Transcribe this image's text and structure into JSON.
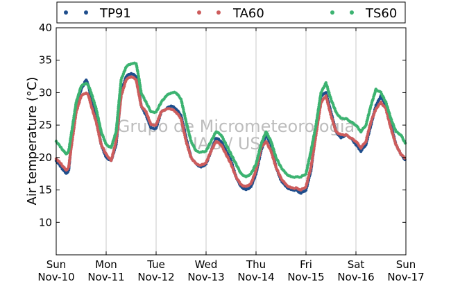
{
  "chart_data": {
    "type": "scatter",
    "title": "",
    "xlabel": "",
    "ylabel": "Air temperature (°C)",
    "ylim": [
      5,
      40
    ],
    "yticks": [
      10,
      15,
      20,
      25,
      30,
      35,
      40
    ],
    "xlim_days": [
      "Nov-10",
      "Nov-17"
    ],
    "xticks": [
      {
        "day": "Sun",
        "date": "Nov-10"
      },
      {
        "day": "Mon",
        "date": "Nov-11"
      },
      {
        "day": "Tue",
        "date": "Nov-12"
      },
      {
        "day": "Wed",
        "date": "Nov-13"
      },
      {
        "day": "Thu",
        "date": "Nov-14"
      },
      {
        "day": "Fri",
        "date": "Nov-15"
      },
      {
        "day": "Sat",
        "date": "Nov-16"
      },
      {
        "day": "Sun",
        "date": "Nov-17"
      }
    ],
    "grid": "vertical",
    "legend_position": "top",
    "watermark": [
      "Grupo de Micrometeorologia",
      "IAG / USP"
    ],
    "x_unit": "days since Nov-10 00:00",
    "series": [
      {
        "name": "TP91",
        "color": "#1f4e8c",
        "x": [
          0,
          0.1,
          0.2,
          0.25,
          0.3,
          0.4,
          0.5,
          0.6,
          0.65,
          0.7,
          0.8,
          0.9,
          1.0,
          1.1,
          1.2,
          1.3,
          1.4,
          1.5,
          1.6,
          1.65,
          1.7,
          1.8,
          1.9,
          2.0,
          2.1,
          2.2,
          2.3,
          2.4,
          2.5,
          2.6,
          2.7,
          2.8,
          2.9,
          3.0,
          3.1,
          3.2,
          3.3,
          3.4,
          3.5,
          3.6,
          3.7,
          3.8,
          3.9,
          4.0,
          4.1,
          4.2,
          4.3,
          4.4,
          4.5,
          4.6,
          4.7,
          4.8,
          4.9,
          5.0,
          5.1,
          5.2,
          5.3,
          5.4,
          5.5,
          5.6,
          5.7,
          5.8,
          5.9,
          6.0,
          6.1,
          6.2,
          6.3,
          6.4,
          6.5,
          6.6,
          6.7,
          6.8,
          6.9,
          7.0
        ],
        "y": [
          19.5,
          18.5,
          17.5,
          18,
          22,
          28,
          30.5,
          32,
          31,
          29,
          26,
          22,
          20,
          19.5,
          22,
          30,
          32.5,
          33,
          32.5,
          30.5,
          28,
          26.5,
          24.5,
          24.5,
          27,
          27.5,
          28,
          27.5,
          26.5,
          23,
          20,
          19,
          18.5,
          19,
          21,
          23,
          22.5,
          21,
          19.5,
          17,
          15.5,
          15,
          15.5,
          17.5,
          21,
          23.5,
          22,
          18.5,
          16.5,
          15.5,
          15,
          15,
          14.5,
          15,
          18,
          24,
          29.5,
          30,
          27,
          24,
          23,
          23.5,
          23,
          22,
          21,
          22,
          25,
          28,
          29.5,
          28,
          25,
          22,
          20.5,
          19.5
        ]
      },
      {
        "name": "TA60",
        "color": "#cd5c5c",
        "x": [
          0,
          0.1,
          0.2,
          0.25,
          0.3,
          0.4,
          0.5,
          0.6,
          0.65,
          0.7,
          0.8,
          0.9,
          1.0,
          1.1,
          1.2,
          1.3,
          1.4,
          1.5,
          1.6,
          1.65,
          1.7,
          1.8,
          1.9,
          2.0,
          2.1,
          2.2,
          2.3,
          2.4,
          2.5,
          2.6,
          2.7,
          2.8,
          2.9,
          3.0,
          3.1,
          3.2,
          3.3,
          3.4,
          3.5,
          3.6,
          3.7,
          3.8,
          3.9,
          4.0,
          4.1,
          4.2,
          4.3,
          4.4,
          4.5,
          4.6,
          4.7,
          4.8,
          4.9,
          5.0,
          5.1,
          5.2,
          5.3,
          5.4,
          5.5,
          5.6,
          5.7,
          5.8,
          5.9,
          6.0,
          6.1,
          6.2,
          6.3,
          6.4,
          6.5,
          6.6,
          6.7,
          6.8,
          6.9,
          7.0
        ],
        "y": [
          19.8,
          19,
          18,
          18.5,
          21.5,
          27,
          29.5,
          30,
          29.5,
          28,
          25.5,
          22,
          20.5,
          19.5,
          22.5,
          29.5,
          32,
          32.5,
          32,
          30,
          28,
          27,
          25,
          25,
          27,
          27.5,
          27.5,
          27,
          26,
          22.5,
          20,
          19,
          18.8,
          19.2,
          21,
          22.5,
          22,
          20.5,
          19,
          17,
          15.8,
          15.5,
          16,
          18,
          21.5,
          22.5,
          21,
          18.5,
          16.8,
          15.8,
          15.3,
          15.3,
          15,
          15.5,
          18.5,
          23.5,
          28.5,
          29.5,
          26.5,
          24,
          23.5,
          23.5,
          23,
          22.5,
          21.5,
          22.5,
          25.5,
          27.5,
          28.5,
          27.5,
          24.5,
          22,
          20.5,
          19.8
        ]
      },
      {
        "name": "TS60",
        "color": "#3cb371",
        "x": [
          0,
          0.1,
          0.2,
          0.25,
          0.3,
          0.4,
          0.5,
          0.6,
          0.65,
          0.7,
          0.8,
          0.9,
          1.0,
          1.1,
          1.2,
          1.3,
          1.4,
          1.5,
          1.6,
          1.65,
          1.7,
          1.8,
          1.9,
          2.0,
          2.1,
          2.2,
          2.3,
          2.4,
          2.5,
          2.6,
          2.7,
          2.8,
          2.9,
          3.0,
          3.1,
          3.2,
          3.3,
          3.4,
          3.5,
          3.6,
          3.7,
          3.8,
          3.9,
          4.0,
          4.1,
          4.2,
          4.3,
          4.4,
          4.5,
          4.6,
          4.7,
          4.8,
          4.9,
          5.0,
          5.1,
          5.2,
          5.3,
          5.4,
          5.5,
          5.6,
          5.7,
          5.8,
          5.9,
          6.0,
          6.1,
          6.2,
          6.3,
          6.4,
          6.5,
          6.6,
          6.7,
          6.8,
          6.9,
          7.0
        ],
        "y": [
          22.5,
          21.5,
          20.5,
          21,
          23.5,
          28.5,
          31,
          31.5,
          31,
          30,
          27.5,
          24,
          22,
          21.5,
          24,
          32,
          34,
          34.5,
          34.5,
          32.5,
          30,
          28.5,
          27,
          27,
          28.5,
          29.5,
          30,
          30,
          29,
          25.5,
          22.5,
          21,
          20.8,
          21,
          22.5,
          24,
          23.5,
          22,
          20.5,
          19,
          17.5,
          17,
          17.5,
          19,
          22,
          24,
          22.5,
          20,
          18.5,
          17.5,
          17,
          17,
          17,
          17.5,
          21,
          25,
          30,
          31.5,
          29,
          27,
          26,
          26,
          25.5,
          25,
          24,
          25,
          28,
          30.5,
          30,
          28.5,
          26,
          24,
          23.5,
          22
        ]
      }
    ]
  }
}
